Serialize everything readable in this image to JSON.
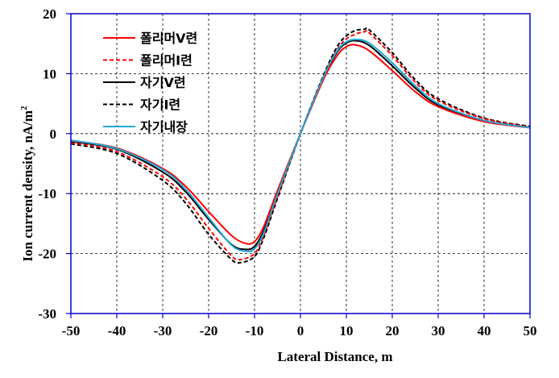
{
  "chart_data": {
    "type": "line",
    "title": "",
    "xlabel": "Lateral Distance, m",
    "ylabel_main": "Ion current  density, nA/m",
    "ylabel_sup": "2",
    "xlim": [
      -50,
      50
    ],
    "ylim": [
      -30,
      20
    ],
    "x_ticks": [
      -50,
      -40,
      -30,
      -20,
      -10,
      0,
      10,
      20,
      30,
      40,
      50
    ],
    "y_ticks": [
      -30,
      -20,
      -10,
      0,
      10,
      20
    ],
    "x_tick_labels": [
      "-50",
      "-40",
      "-30",
      "-20",
      "-10",
      "0",
      "10",
      "20",
      "30",
      "40",
      "50"
    ],
    "y_tick_labels": [
      "-30",
      "-20",
      "-10",
      "0",
      "10",
      "20"
    ],
    "grid": true,
    "legend_position": "top-left",
    "series": [
      {
        "name": "폴리머V련",
        "color": "#ff0000",
        "dash": "solid",
        "x": [
          -50,
          -40,
          -30,
          -25,
          -20,
          -15,
          -12,
          -10,
          -8,
          -5,
          0,
          5,
          8,
          10,
          12,
          15,
          20,
          25,
          30,
          40,
          50
        ],
        "values": [
          -1.2,
          -2.4,
          -5.8,
          -8.8,
          -13.0,
          -17.0,
          -18.3,
          -18.0,
          -15.5,
          -9.5,
          0,
          9.0,
          13.0,
          14.5,
          14.8,
          13.8,
          10.5,
          7.0,
          4.5,
          2.0,
          1.0
        ]
      },
      {
        "name": "폴리머I련",
        "color": "#ff0000",
        "dash": "dashed",
        "x": [
          -50,
          -40,
          -30,
          -25,
          -20,
          -15,
          -13,
          -10,
          -8,
          -5,
          0,
          5,
          8,
          10,
          12,
          14,
          15,
          20,
          25,
          30,
          40,
          50
        ],
        "values": [
          -1.5,
          -3.0,
          -7.2,
          -10.8,
          -15.8,
          -20.4,
          -21.0,
          -20.0,
          -17.0,
          -10.5,
          0,
          9.5,
          14.0,
          15.8,
          16.6,
          17.0,
          16.8,
          13.0,
          8.6,
          5.5,
          2.5,
          1.1
        ]
      },
      {
        "name": "자기V련",
        "color": "#000000",
        "dash": "solid",
        "x": [
          -50,
          -40,
          -30,
          -25,
          -20,
          -15,
          -12,
          -10,
          -8,
          -5,
          0,
          5,
          8,
          10,
          12,
          15,
          20,
          25,
          30,
          40,
          50
        ],
        "values": [
          -1.3,
          -2.6,
          -6.4,
          -9.7,
          -14.3,
          -18.5,
          -19.3,
          -18.8,
          -16.2,
          -9.9,
          0,
          9.3,
          13.6,
          15.1,
          15.5,
          14.7,
          11.3,
          7.6,
          4.8,
          2.1,
          1.0
        ]
      },
      {
        "name": "자기I련",
        "color": "#000000",
        "dash": "dashed",
        "x": [
          -50,
          -40,
          -30,
          -25,
          -20,
          -15,
          -13,
          -10,
          -8,
          -5,
          0,
          5,
          8,
          10,
          12,
          14,
          15,
          20,
          25,
          30,
          40,
          50
        ],
        "values": [
          -1.7,
          -3.3,
          -7.8,
          -11.6,
          -16.8,
          -21.0,
          -21.5,
          -20.5,
          -17.4,
          -10.8,
          0,
          9.7,
          14.5,
          16.3,
          17.2,
          17.4,
          17.3,
          13.5,
          9.0,
          5.8,
          2.6,
          1.2
        ]
      },
      {
        "name": "자기내장",
        "color": "#1fa8d6",
        "dash": "solid",
        "x": [
          -50,
          -40,
          -30,
          -25,
          -20,
          -15,
          -12,
          -10,
          -8,
          -5,
          0,
          5,
          8,
          10,
          12,
          15,
          20,
          25,
          30,
          40,
          50
        ],
        "values": [
          -1.1,
          -2.5,
          -6.0,
          -9.3,
          -14.0,
          -18.6,
          -19.6,
          -19.2,
          -16.6,
          -10.1,
          0,
          9.4,
          13.8,
          15.3,
          15.7,
          15.1,
          11.8,
          8.0,
          5.0,
          2.2,
          1.0
        ]
      }
    ]
  }
}
